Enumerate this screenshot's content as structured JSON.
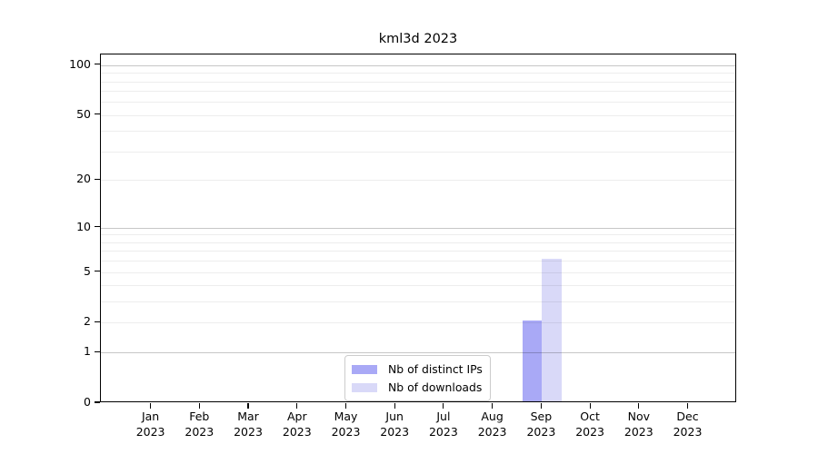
{
  "chart_data": {
    "type": "bar",
    "title": "kml3d 2023",
    "x_categories": [
      "Jan",
      "Feb",
      "Mar",
      "Apr",
      "May",
      "Jun",
      "Jul",
      "Aug",
      "Sep",
      "Oct",
      "Nov",
      "Dec"
    ],
    "x_year": "2023",
    "series": [
      {
        "name": "Nb of distinct IPs",
        "color": "#a9a9f6",
        "values": [
          0,
          0,
          0,
          0,
          0,
          0,
          0,
          0,
          2,
          0,
          0,
          0
        ]
      },
      {
        "name": "Nb of downloads",
        "color": "#d9d9f8",
        "values": [
          0,
          0,
          0,
          0,
          0,
          0,
          0,
          0,
          6,
          0,
          0,
          0
        ]
      }
    ],
    "yscale": "log1p",
    "ylim": [
      0,
      115
    ],
    "y_tick_values": [
      0,
      1,
      2,
      5,
      10,
      20,
      50,
      100
    ],
    "y_major_gridlines": [
      1,
      10,
      100
    ],
    "y_minor_gridlines": [
      2,
      3,
      4,
      5,
      6,
      7,
      8,
      9,
      20,
      30,
      40,
      50,
      60,
      70,
      80,
      90
    ],
    "grid": true,
    "legend_position": "bottom-center"
  },
  "colors": {
    "bar_distinct_ips": "#a9a9f6",
    "bar_downloads": "#d9d9f8",
    "axis": "#000000",
    "grid_major": "#c6c6c6",
    "grid_minor": "#ededed",
    "legend_border": "#cccccc"
  }
}
